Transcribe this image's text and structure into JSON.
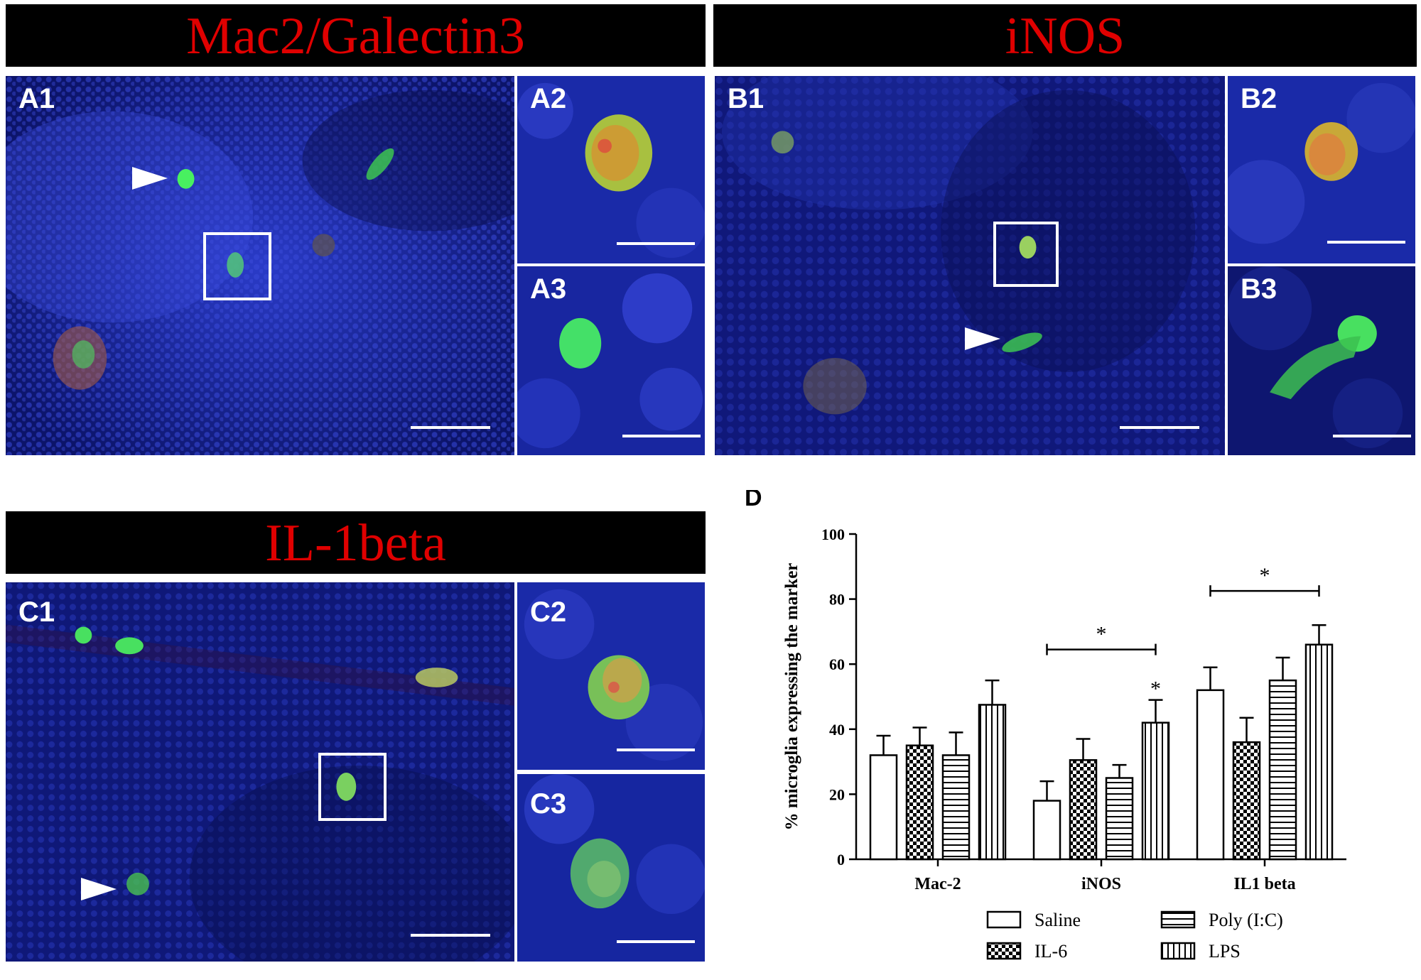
{
  "headers": {
    "a": "Mac2/Galectin3",
    "b": "iNOS",
    "c": "IL-1beta"
  },
  "panel_labels": {
    "a1": "A1",
    "a2": "A2",
    "a3": "A3",
    "b1": "B1",
    "b2": "B2",
    "b3": "B3",
    "c1": "C1",
    "c2": "C2",
    "c3": "C3",
    "d": "D"
  },
  "colors": {
    "header_text": "#e00000",
    "header_bg": "#000000",
    "nuclei": "#1a28b4",
    "microglia": "#3cf05a",
    "marker": "#e83030"
  },
  "chart_data": {
    "type": "bar",
    "ylabel": "% microglia expressing the marker",
    "ylim": [
      0,
      100
    ],
    "yticks": [
      0,
      20,
      40,
      60,
      80,
      100
    ],
    "categories": [
      "Mac-2",
      "iNOS",
      "IL1 beta"
    ],
    "series": [
      {
        "name": "Saline",
        "pattern": "plain",
        "values": [
          32,
          18,
          52
        ],
        "errors": [
          6,
          6,
          7
        ]
      },
      {
        "name": "IL-6",
        "pattern": "checker",
        "values": [
          35,
          30.5,
          36
        ],
        "errors": [
          5.5,
          6.5,
          7.5
        ]
      },
      {
        "name": "Poly (I:C)",
        "pattern": "horizontal",
        "values": [
          32,
          25,
          55
        ],
        "errors": [
          7,
          4,
          7
        ]
      },
      {
        "name": "LPS",
        "pattern": "vertical",
        "values": [
          47.5,
          42,
          66
        ],
        "errors": [
          7.5,
          7,
          6
        ]
      }
    ],
    "significance": [
      {
        "category": "iNOS",
        "type": "bracket",
        "from_series": "Saline",
        "to_series": "LPS",
        "y": 64.5,
        "label": "*"
      },
      {
        "category": "IL1 beta",
        "type": "bracket",
        "from_series": "Saline",
        "to_series": "LPS",
        "y": 82.5,
        "label": "*"
      },
      {
        "category": "iNOS",
        "type": "star",
        "series": "LPS",
        "label": "*"
      }
    ],
    "legend": {
      "placement": "bottom",
      "columns": 2
    }
  }
}
